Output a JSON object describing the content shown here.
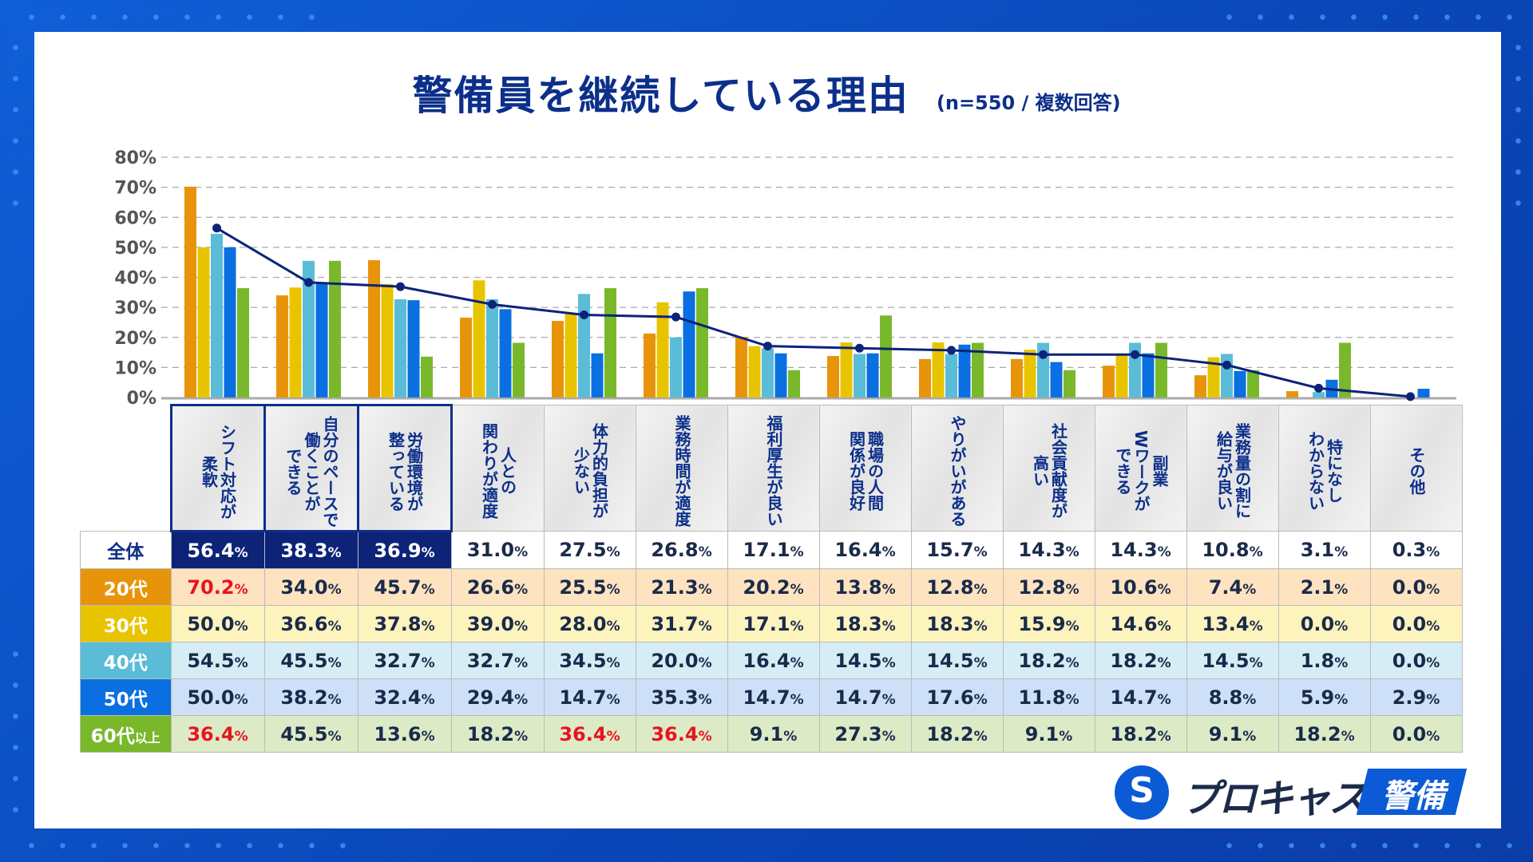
{
  "title": "警備員を継続している理由",
  "subtitle": "(n=550 / 複数回答)",
  "logo": {
    "name": "プロキャス",
    "badge": "警備"
  },
  "colors": {
    "20代": "#e8940a",
    "30代": "#e8c400",
    "40代": "#5bbcd8",
    "50代": "#0a6fe0",
    "60代以上": "#78b82a",
    "全体": "#0c2378",
    "highlight": "#e8141e"
  },
  "chart_data": {
    "type": "bar",
    "ylim": [
      0,
      80
    ],
    "yticks": [
      "0%",
      "10%",
      "20%",
      "30%",
      "40%",
      "50%",
      "60%",
      "70%",
      "80%"
    ],
    "grid": true,
    "categories": [
      "シフト対応が\n柔軟",
      "自分のペースで\n働くことが\nできる",
      "労働環境が\n整っている",
      "人との\n関わりが適度",
      "体力的負担が\n少ない",
      "業務時間が適度",
      "福利厚生が良い",
      "職場の人間\n関係が良好",
      "やりがいがある",
      "社会貢献度が\n高い",
      "副業\nWワークが\nできる",
      "業務量の割に\n給与が良い",
      "特になし\nわからない",
      "その他"
    ],
    "line_series": {
      "name": "全体",
      "values": [
        56.4,
        38.3,
        36.9,
        31.0,
        27.5,
        26.8,
        17.1,
        16.4,
        15.7,
        14.3,
        14.3,
        10.8,
        3.1,
        0.3
      ]
    },
    "series": [
      {
        "name": "20代",
        "values": [
          70.2,
          34.0,
          45.7,
          26.6,
          25.5,
          21.3,
          20.2,
          13.8,
          12.8,
          12.8,
          10.6,
          7.4,
          2.1,
          0.0
        ]
      },
      {
        "name": "30代",
        "values": [
          50.0,
          36.6,
          37.8,
          39.0,
          28.0,
          31.7,
          17.1,
          18.3,
          18.3,
          15.9,
          14.6,
          13.4,
          0.0,
          0.0
        ]
      },
      {
        "name": "40代",
        "values": [
          54.5,
          45.5,
          32.7,
          32.7,
          34.5,
          20.0,
          16.4,
          14.5,
          14.5,
          18.2,
          18.2,
          14.5,
          1.8,
          0.0
        ]
      },
      {
        "name": "50代",
        "values": [
          50.0,
          38.2,
          32.4,
          29.4,
          14.7,
          35.3,
          14.7,
          14.7,
          17.6,
          11.8,
          14.7,
          8.8,
          5.9,
          2.9
        ]
      },
      {
        "name": "60代以上",
        "values": [
          36.4,
          45.5,
          13.6,
          18.2,
          36.4,
          36.4,
          9.1,
          27.3,
          18.2,
          9.1,
          18.2,
          9.1,
          18.2,
          0.0
        ]
      }
    ],
    "highlighted_cells": {
      "20代": [
        0
      ],
      "60代以上": [
        0,
        4,
        5
      ]
    },
    "top_columns": [
      0,
      1,
      2
    ]
  },
  "row_labels": {
    "全体": "全体",
    "20代": "20代",
    "30代": "30代",
    "40代": "40代",
    "50代": "50代",
    "60代以上_main": "60代",
    "60代以上_suffix": "以上"
  },
  "row_bg": {
    "20代": "#fde3bf",
    "30代": "#fdf3bd",
    "40代": "#d6edf5",
    "50代": "#cde0f8",
    "60代以上": "#dcebc6"
  }
}
